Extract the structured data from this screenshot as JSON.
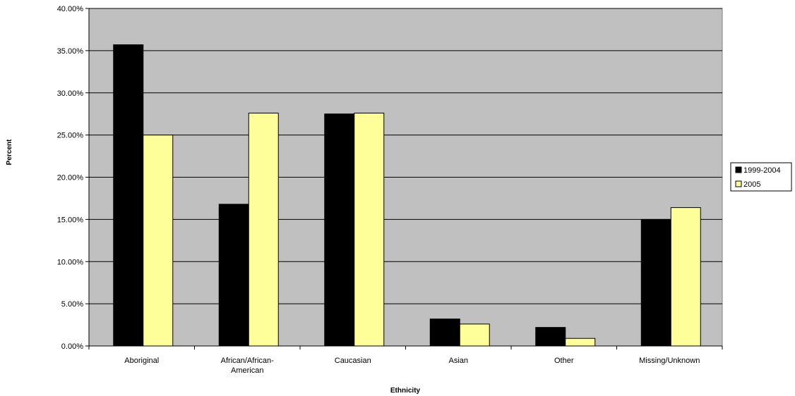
{
  "chart_data": {
    "type": "bar",
    "title": "",
    "xlabel": "Ethnicity",
    "ylabel": "Percent",
    "ylim": [
      0,
      40
    ],
    "yticks": [
      0,
      5,
      10,
      15,
      20,
      25,
      30,
      35,
      40
    ],
    "ytick_labels": [
      "0.00%",
      "5.00%",
      "10.00%",
      "15.00%",
      "20.00%",
      "25.00%",
      "30.00%",
      "35.00%",
      "40.00%"
    ],
    "categories": [
      [
        "Aboriginal"
      ],
      [
        "African/African-",
        "American"
      ],
      [
        "Caucasian"
      ],
      [
        "Asian"
      ],
      [
        "Other"
      ],
      [
        "Missing/Unknown"
      ]
    ],
    "series": [
      {
        "name": "1999-2004",
        "color": "#000000",
        "values": [
          35.7,
          16.8,
          27.5,
          3.2,
          2.2,
          15.0
        ]
      },
      {
        "name": "2005",
        "color": "#ffff99",
        "values": [
          25.0,
          27.6,
          27.6,
          2.6,
          0.9,
          16.4
        ]
      }
    ],
    "plot_background": "#c0c0c0",
    "grid": true,
    "legend_position": "right"
  }
}
